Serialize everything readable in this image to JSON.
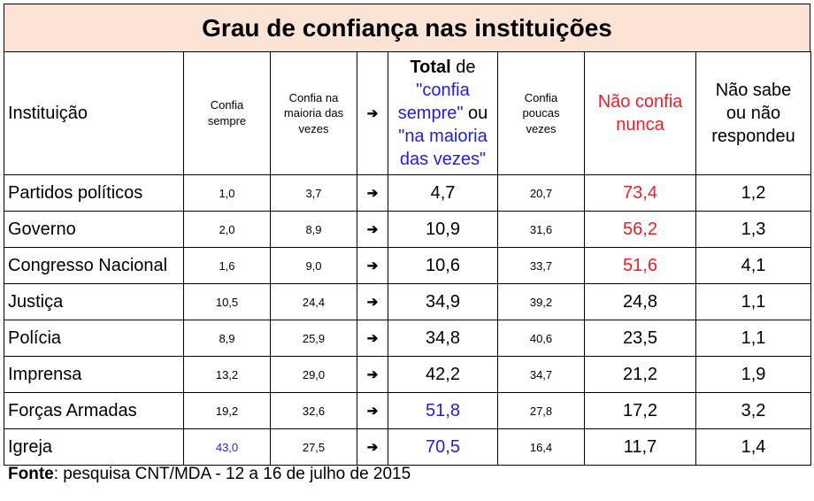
{
  "title": "Grau de confiança nas instituições",
  "columns": {
    "instituicao": "Instituição",
    "confia_sempre": [
      "Confia",
      "sempre"
    ],
    "confia_maioria": [
      "Confia na",
      "maioria das",
      "vezes"
    ],
    "arrow": "➔",
    "total_bold": "Total",
    "total_rest": " de",
    "total_q1": "\"confia",
    "total_q2": "sempre\"",
    "total_ou": " ou",
    "total_q3": "\"na maioria",
    "total_q4": "das vezes\"",
    "confia_poucas": [
      "Confia",
      "poucas",
      "vezes"
    ],
    "nao_confia": [
      "Não confia",
      "nunca"
    ],
    "nao_sabe": [
      "Não sabe",
      "ou não",
      "respondeu"
    ]
  },
  "colors": {
    "title_bg": "#fbe4d5",
    "highlight_blue": "#1f1fd6",
    "highlight_red": "#e8202a"
  },
  "chart_data": {
    "type": "table",
    "title": "Grau de confiança nas instituições",
    "headers": [
      "Instituição",
      "Confia sempre",
      "Confia na maioria das vezes",
      "Total de \"confia sempre\" ou \"na maioria das vezes\"",
      "Confia poucas vezes",
      "Não confia nunca",
      "Não sabe ou não respondeu"
    ],
    "rows": [
      {
        "inst": "Partidos políticos",
        "sempre": "1,0",
        "maioria": "3,7",
        "arrow": "➔",
        "total": "4,7",
        "poucas": "20,7",
        "nunca": "73,4",
        "nao_sabe": "1,2",
        "sempre_blue": false,
        "total_blue": false,
        "nunca_red": true
      },
      {
        "inst": "Governo",
        "sempre": "2,0",
        "maioria": "8,9",
        "arrow": "➔",
        "total": "10,9",
        "poucas": "31,6",
        "nunca": "56,2",
        "nao_sabe": "1,3",
        "sempre_blue": false,
        "total_blue": false,
        "nunca_red": true
      },
      {
        "inst": "Congresso Nacional",
        "sempre": "1,6",
        "maioria": "9,0",
        "arrow": "➔",
        "total": "10,6",
        "poucas": "33,7",
        "nunca": "51,6",
        "nao_sabe": "4,1",
        "sempre_blue": false,
        "total_blue": false,
        "nunca_red": true
      },
      {
        "inst": "Justiça",
        "sempre": "10,5",
        "maioria": "24,4",
        "arrow": "➔",
        "total": "34,9",
        "poucas": "39,2",
        "nunca": "24,8",
        "nao_sabe": "1,1",
        "sempre_blue": false,
        "total_blue": false,
        "nunca_red": false
      },
      {
        "inst": "Polícia",
        "sempre": "8,9",
        "maioria": "25,9",
        "arrow": "➔",
        "total": "34,8",
        "poucas": "40,6",
        "nunca": "23,5",
        "nao_sabe": "1,1",
        "sempre_blue": false,
        "total_blue": false,
        "nunca_red": false
      },
      {
        "inst": "Imprensa",
        "sempre": "13,2",
        "maioria": "29,0",
        "arrow": "➔",
        "total": "42,2",
        "poucas": "34,7",
        "nunca": "21,2",
        "nao_sabe": "1,9",
        "sempre_blue": false,
        "total_blue": false,
        "nunca_red": false
      },
      {
        "inst": "Forças Armadas",
        "sempre": "19,2",
        "maioria": "32,6",
        "arrow": "➔",
        "total": "51,8",
        "poucas": "27,8",
        "nunca": "17,2",
        "nao_sabe": "3,2",
        "sempre_blue": false,
        "total_blue": true,
        "nunca_red": false
      },
      {
        "inst": "Igreja",
        "sempre": "43,0",
        "maioria": "27,5",
        "arrow": "➔",
        "total": "70,5",
        "poucas": "16,4",
        "nunca": "11,7",
        "nao_sabe": "1,4",
        "sempre_blue": true,
        "total_blue": true,
        "nunca_red": false
      }
    ]
  },
  "source": {
    "label": "Fonte",
    "text": ": pesquisa CNT/MDA - 12 a 16 de julho de 2015"
  }
}
